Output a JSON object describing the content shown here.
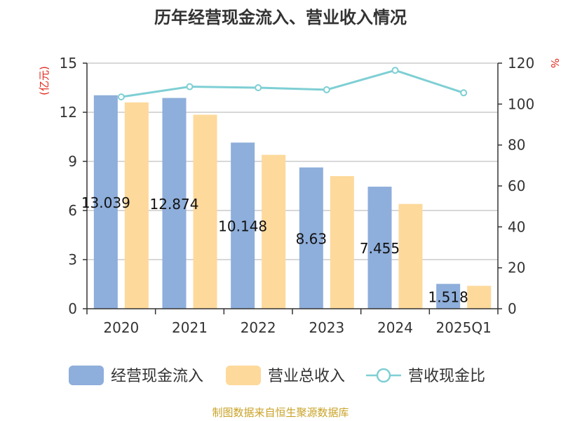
{
  "chart_data": {
    "type": "bar",
    "title": "历年经营现金流入、营业收入情况",
    "categories": [
      "2020",
      "2021",
      "2022",
      "2023",
      "2024",
      "2025Q1"
    ],
    "y_left": {
      "unit_label": "(亿元)",
      "ylim": [
        0,
        15
      ],
      "ticks": [
        "0",
        "3",
        "6",
        "9",
        "12",
        "15"
      ]
    },
    "y_right": {
      "unit_label": "%",
      "ylim": [
        0,
        120
      ],
      "ticks": [
        "0",
        "20",
        "40",
        "60",
        "80",
        "100",
        "120"
      ]
    },
    "series": [
      {
        "name": "经营现金流入",
        "type": "bar",
        "axis": "left",
        "color": "#8eaedb",
        "values": [
          13.039,
          12.874,
          10.148,
          8.63,
          7.455,
          1.518
        ],
        "labels": [
          "13.039",
          "12.874",
          "10.148",
          "8.63",
          "7.455",
          "1.518"
        ]
      },
      {
        "name": "营业总收入",
        "type": "bar",
        "axis": "left",
        "color": "#fdd99b",
        "values": [
          12.6,
          11.85,
          9.4,
          8.1,
          6.4,
          1.4
        ]
      },
      {
        "name": "营收现金比",
        "type": "line",
        "axis": "right",
        "color": "#7ecfd4",
        "values": [
          103.5,
          108.5,
          108.0,
          107.0,
          116.5,
          105.5
        ]
      }
    ],
    "grid": true,
    "legend_position": "bottom",
    "footer": "制图数据来自恒生聚源数据库"
  }
}
